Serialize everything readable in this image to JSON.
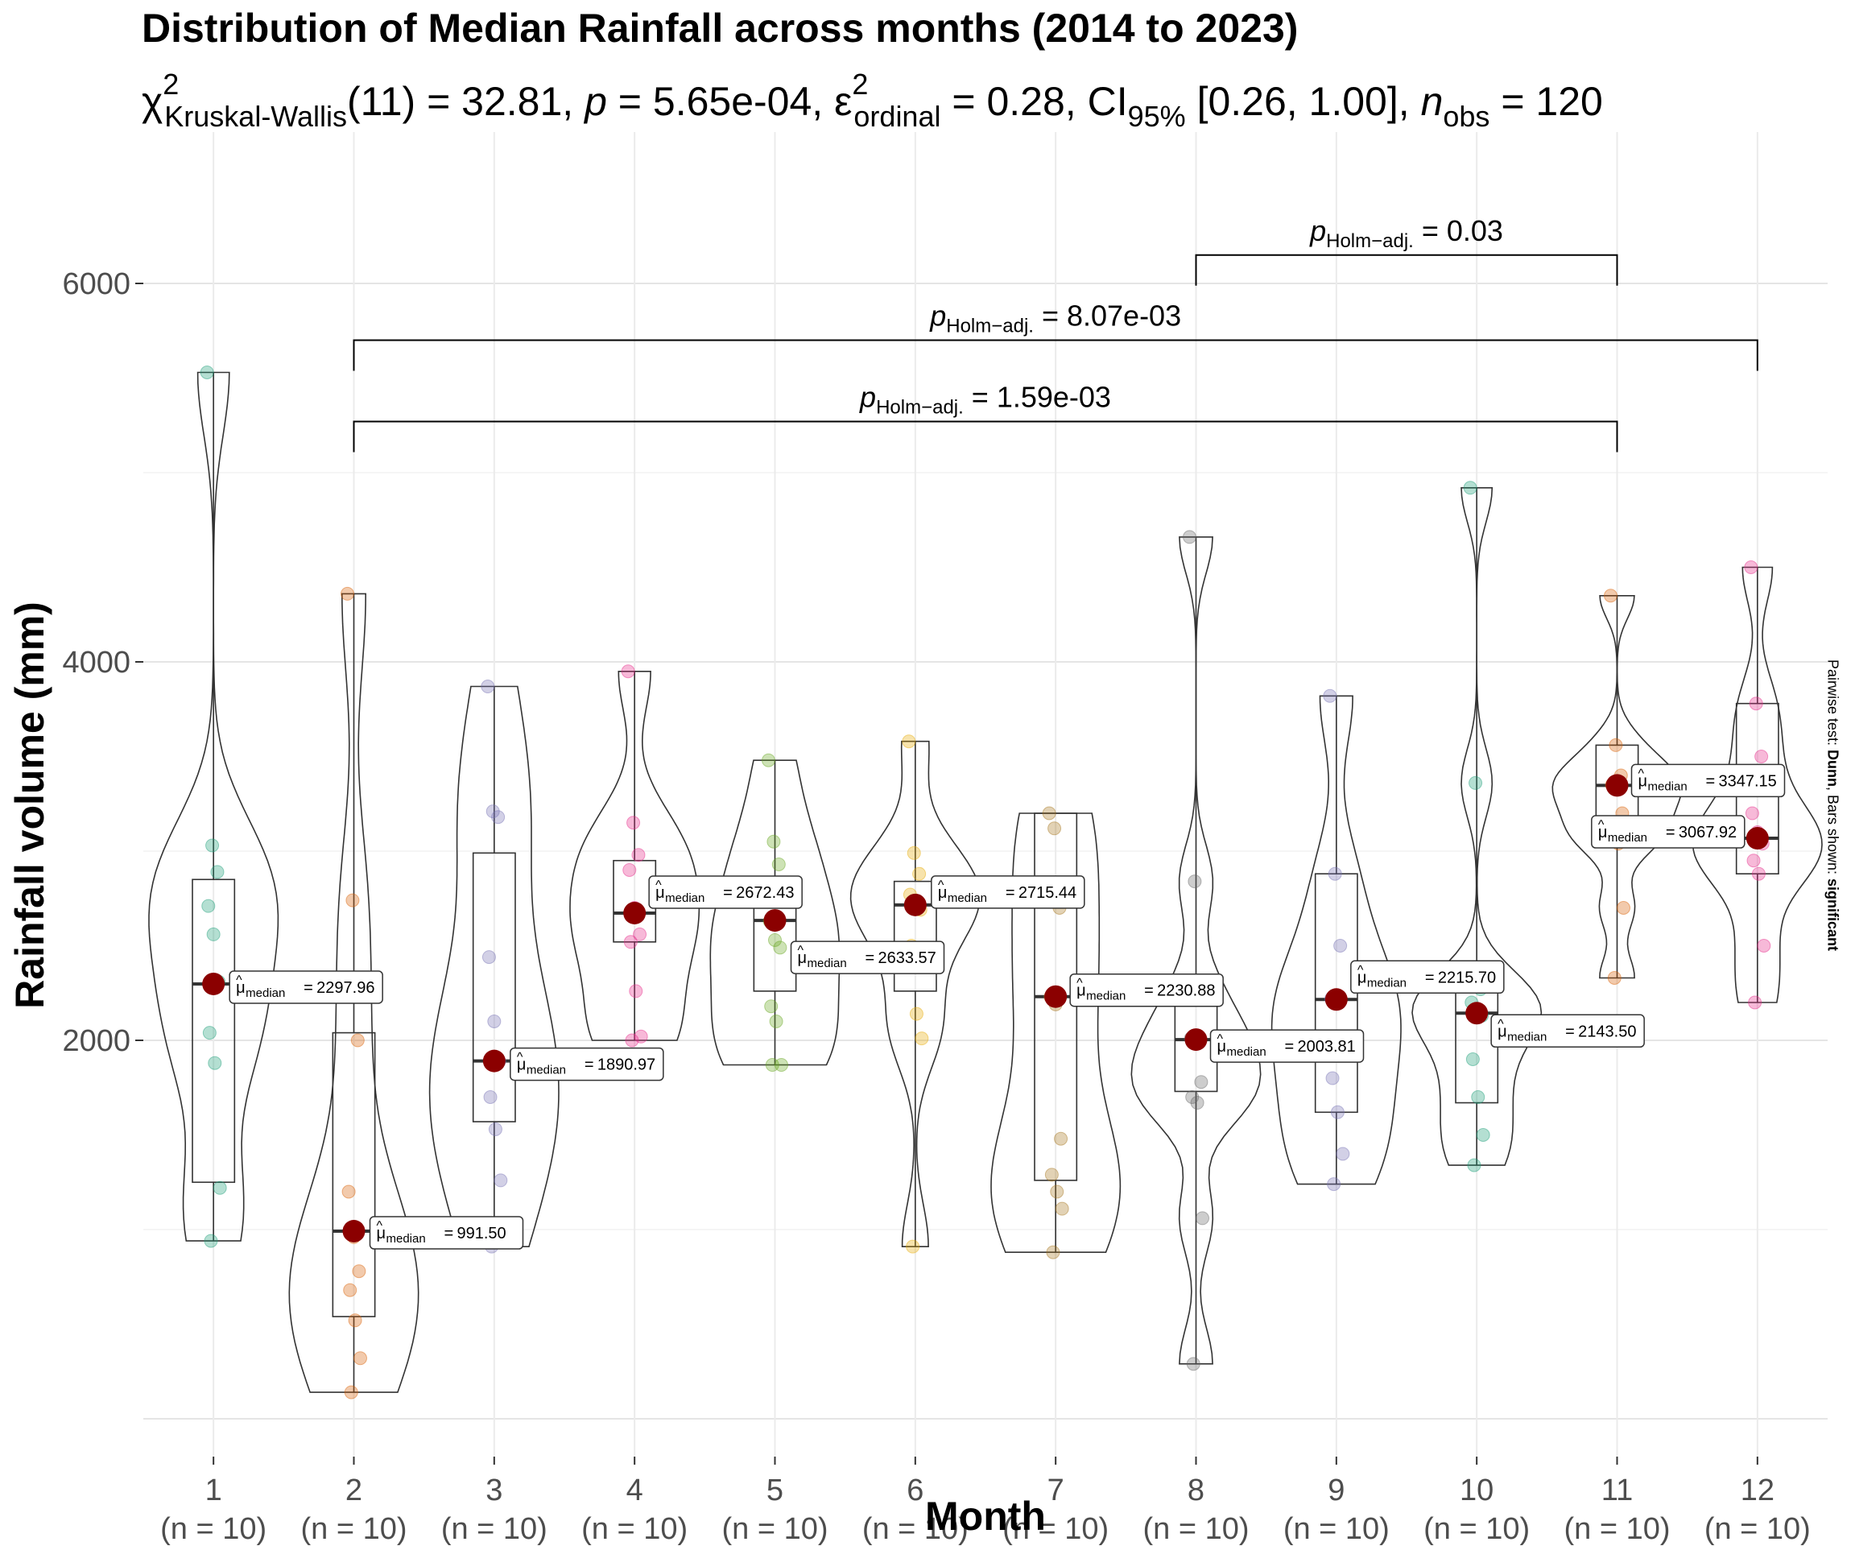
{
  "chart_data": {
    "type": "violin-box",
    "title": "Distribution of Median Rainfall across months (2014 to 2023)",
    "subtitle": {
      "statistic": "χ",
      "statistic_power": "2",
      "statistic_sub": "Kruskal-Wallis",
      "df": "(11)",
      "statistic_value": "32.81",
      "p_label": "p",
      "p_value": "5.65e-04",
      "effsize_label": "ε",
      "effsize_power": "2",
      "effsize_sub": "ordinal",
      "effsize_value": "0.28",
      "ci_label": "CI",
      "ci_sub": "95%",
      "ci_value": "[0.26, 1.00]",
      "n_label": "n",
      "n_sub": "obs",
      "n_value": "120"
    },
    "caption_prefix": "Pairwise test: ",
    "caption_test": "Dunn",
    "caption_mid": ", Bars shown: ",
    "caption_bars": "significant",
    "xlabel": "Month",
    "ylabel": "Rainfall volume (mm)",
    "ylim": [
      -200,
      6800
    ],
    "yticks": [
      2000,
      4000,
      6000
    ],
    "grid": true,
    "legend": "none",
    "categories": [
      "1",
      "2",
      "3",
      "4",
      "5",
      "6",
      "7",
      "8",
      "9",
      "10",
      "11",
      "12"
    ],
    "n_labels": [
      "(n = 10)",
      "(n = 10)",
      "(n = 10)",
      "(n = 10)",
      "(n = 10)",
      "(n = 10)",
      "(n = 10)",
      "(n = 10)",
      "(n = 10)",
      "(n = 10)",
      "(n = 10)",
      "(n = 10)"
    ],
    "median_symbol": "μ",
    "median_sub": "median",
    "groups": [
      {
        "month": "1",
        "color": "#1B9E77",
        "median": 2297.96,
        "label": "2297.96",
        "q1": 1250,
        "q3": 2850,
        "points": [
          5530,
          3030,
          2890,
          2710,
          2560,
          2310,
          2040,
          1880,
          1220,
          940
        ]
      },
      {
        "month": "2",
        "color": "#D95F02",
        "median": 991.5,
        "label": "991.50",
        "q1": 540,
        "q3": 2040,
        "points": [
          4360,
          2740,
          2000,
          1200,
          960,
          780,
          680,
          520,
          320,
          140
        ]
      },
      {
        "month": "3",
        "color": "#7570B3",
        "median": 1890.97,
        "label": "1890.97",
        "q1": 1570,
        "q3": 2990,
        "points": [
          3870,
          3210,
          3180,
          2440,
          2100,
          1890,
          1700,
          1530,
          1260,
          910
        ]
      },
      {
        "month": "4",
        "color": "#E7298A",
        "median": 2672.43,
        "label": "2672.43",
        "q1": 2520,
        "q3": 2950,
        "points": [
          3950,
          3150,
          2980,
          2900,
          2700,
          2560,
          2520,
          2260,
          2020,
          2000
        ]
      },
      {
        "month": "5",
        "color": "#66A61E",
        "median": 2633.57,
        "label": "2633.57",
        "q1": 2260,
        "q3": 2830,
        "points": [
          3480,
          3050,
          2930,
          2630,
          2530,
          2490,
          2180,
          2100,
          1870,
          1870
        ]
      },
      {
        "month": "6",
        "color": "#E6AB02",
        "median": 2715.44,
        "label": "2715.44",
        "q1": 2260,
        "q3": 2840,
        "points": [
          3580,
          2990,
          2880,
          2770,
          2720,
          2690,
          2500,
          2140,
          2010,
          910
        ]
      },
      {
        "month": "7",
        "color": "#A6761D",
        "median": 2230.88,
        "label": "2230.88",
        "q1": 1260,
        "q3": 3200,
        "points": [
          3200,
          3120,
          2700,
          2230,
          2190,
          1480,
          1290,
          1200,
          1110,
          880
        ]
      },
      {
        "month": "8",
        "color": "#666666",
        "median": 2003.81,
        "label": "2003.81",
        "q1": 1730,
        "q3": 2280,
        "points": [
          4660,
          2840,
          2280,
          2010,
          1990,
          1780,
          1700,
          1670,
          1060,
          290
        ]
      },
      {
        "month": "9",
        "color": "#7570B3",
        "median": 2215.7,
        "label": "2215.70",
        "q1": 1620,
        "q3": 2880,
        "points": [
          3820,
          2880,
          2500,
          2220,
          2210,
          2000,
          1800,
          1620,
          1400,
          1240
        ]
      },
      {
        "month": "10",
        "color": "#1B9E77",
        "median": 2143.5,
        "label": "2143.50",
        "q1": 1670,
        "q3": 2270,
        "points": [
          4920,
          3360,
          2270,
          2200,
          2140,
          2130,
          1900,
          1700,
          1500,
          1340
        ]
      },
      {
        "month": "11",
        "color": "#D95F02",
        "median": 3347.15,
        "label": "3347.15",
        "q1": 3040,
        "q3": 3560,
        "points": [
          4350,
          3560,
          3400,
          3350,
          3340,
          3200,
          3100,
          3040,
          2700,
          2330
        ]
      },
      {
        "month": "12",
        "color": "#E7298A",
        "median": 3067.92,
        "label": "3067.92",
        "q1": 2880,
        "q3": 3780,
        "points": [
          4500,
          3780,
          3500,
          3200,
          3100,
          3040,
          2950,
          2880,
          2500,
          2200
        ]
      }
    ],
    "pairwise": [
      {
        "from": "2",
        "to": "11",
        "p_label": "p",
        "p_sub": "Holm−adj.",
        "p_value": "1.59e-03",
        "y": 5270
      },
      {
        "from": "2",
        "to": "12",
        "p_label": "p",
        "p_sub": "Holm−adj.",
        "p_value": "8.07e-03",
        "y": 5700
      },
      {
        "from": "8",
        "to": "11",
        "p_label": "p",
        "p_sub": "Holm−adj.",
        "p_value": "0.03",
        "y": 6150
      }
    ]
  }
}
